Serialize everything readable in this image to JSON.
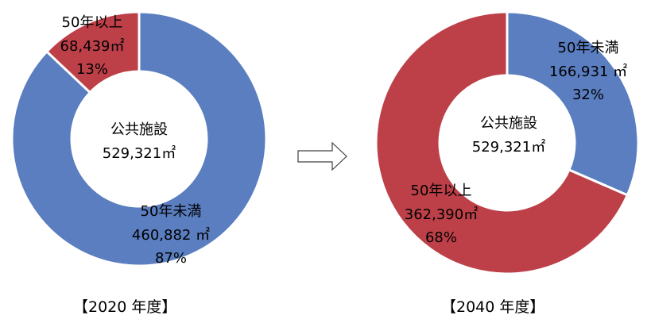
{
  "chart_data": [
    {
      "type": "pie",
      "caption": "【2020 年度】",
      "center": {
        "title": "公共施設",
        "value": "529,321㎡"
      },
      "slices": [
        {
          "name": "50年未満",
          "area": "460,882 ㎡",
          "percent": "87%",
          "value": 460882,
          "color": "#5A7EC0"
        },
        {
          "name": "50年以上",
          "area": "68,439㎡",
          "percent": "13%",
          "value": 68439,
          "color": "#BD4049"
        }
      ]
    },
    {
      "type": "pie",
      "caption": "【2040 年度】",
      "center": {
        "title": "公共施設",
        "value": "529,321㎡"
      },
      "slices": [
        {
          "name": "50年未満",
          "area": "166,931 ㎡",
          "percent": "32%",
          "value": 166931,
          "color": "#5A7EC0"
        },
        {
          "name": "50年以上",
          "area": "362,390㎡",
          "percent": "68%",
          "value": 362390,
          "color": "#BD4049"
        }
      ]
    }
  ]
}
